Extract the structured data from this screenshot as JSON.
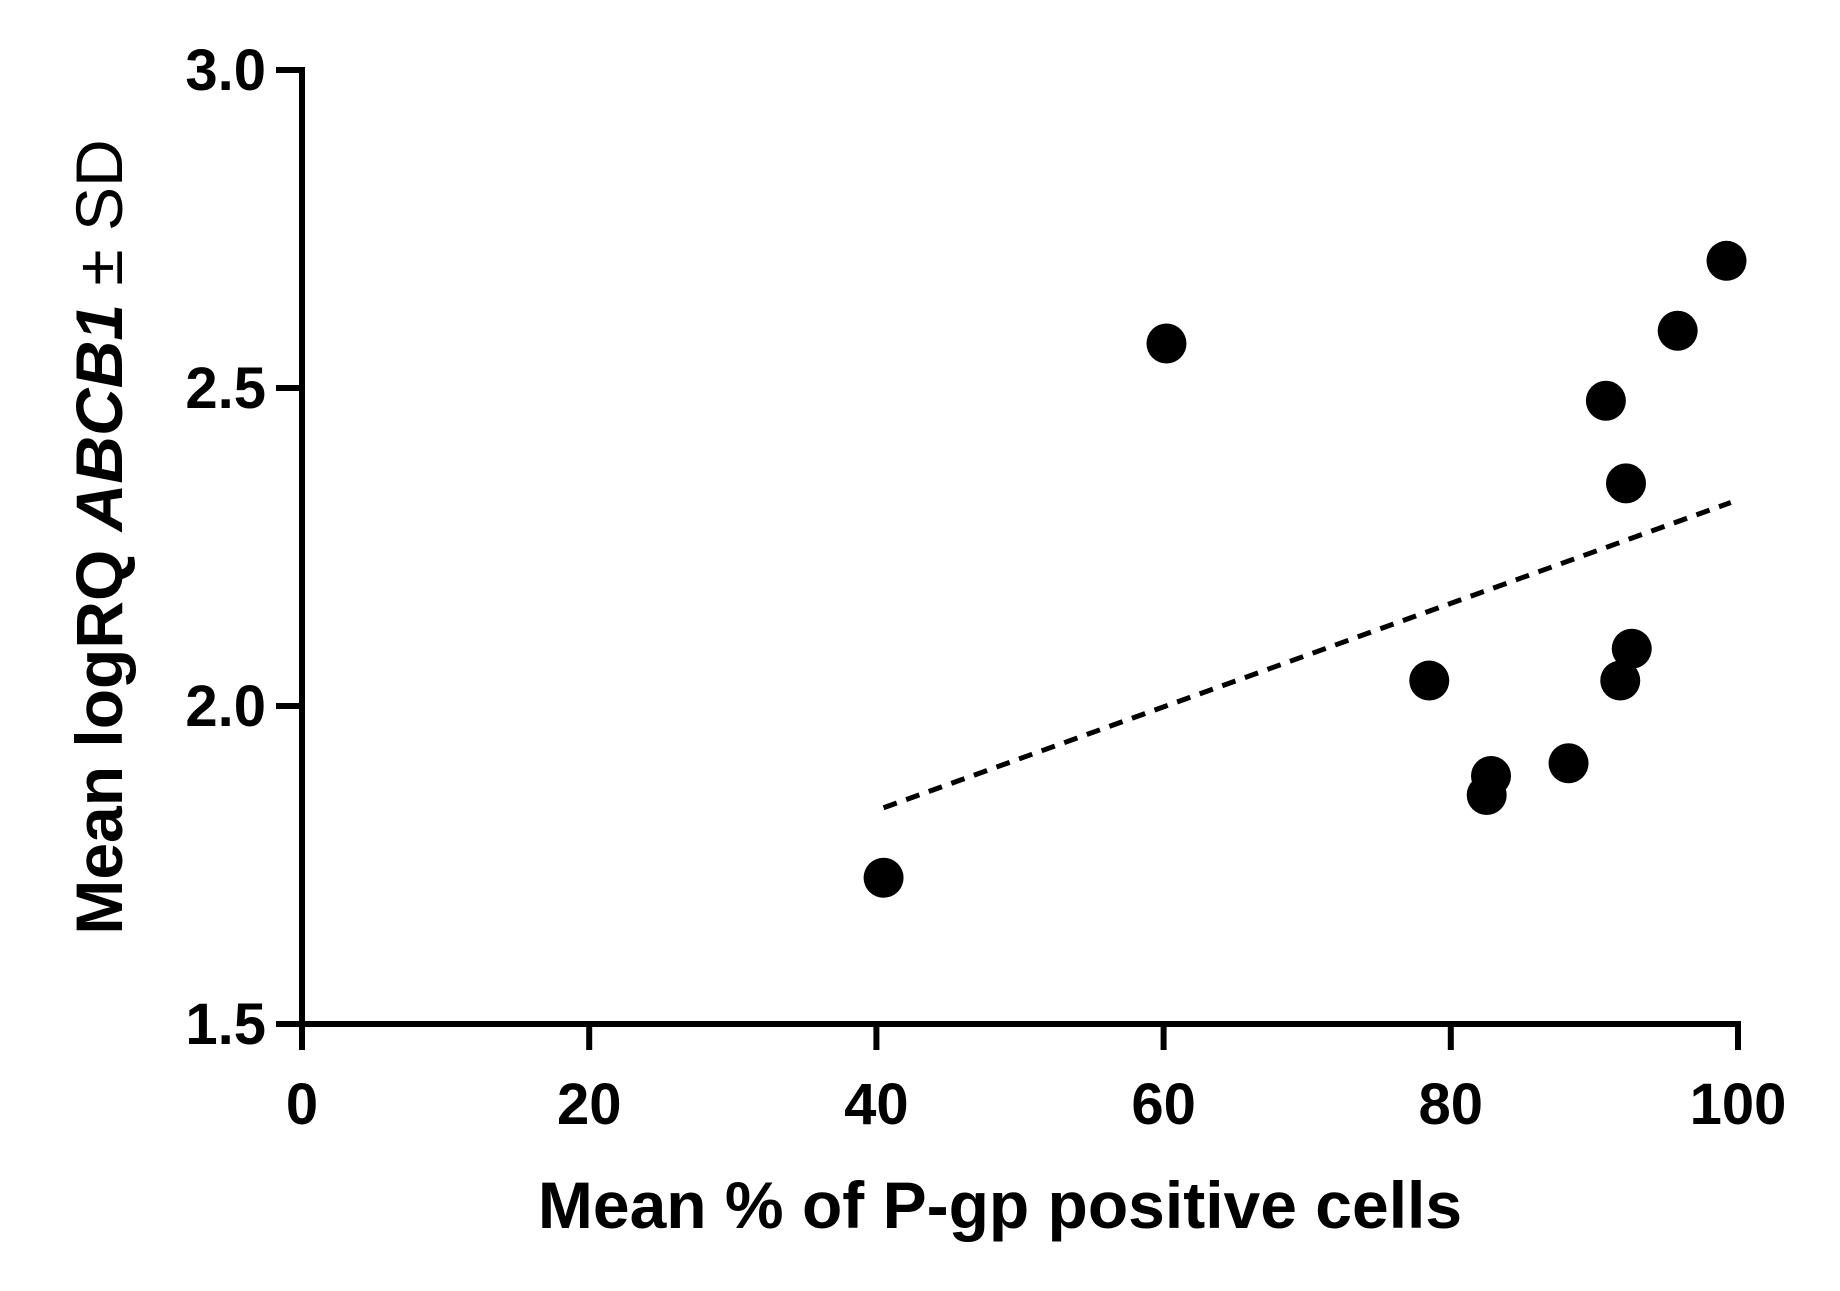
{
  "chart_data": {
    "type": "scatter",
    "title": "",
    "xlabel": "Mean % of P-gp positive cells",
    "ylabel": {
      "prefix": "Mean logRQ ",
      "gene": "ABCB1",
      "suffix": " ± SD"
    },
    "xlim": [
      0,
      100
    ],
    "ylim": [
      1.5,
      3.0
    ],
    "x_ticks": [
      0,
      20,
      40,
      60,
      80,
      100
    ],
    "x_tick_labels": [
      "0",
      "20",
      "40",
      "60",
      "80",
      "100"
    ],
    "y_ticks": [
      1.5,
      2.0,
      2.5,
      3.0
    ],
    "y_tick_labels": [
      "1.5",
      "2.0",
      "2.5",
      "3.0"
    ],
    "grid": false,
    "points": [
      {
        "x": 40.5,
        "y": 1.73
      },
      {
        "x": 60.2,
        "y": 2.57
      },
      {
        "x": 78.5,
        "y": 2.04
      },
      {
        "x": 82.5,
        "y": 1.86
      },
      {
        "x": 82.8,
        "y": 1.89
      },
      {
        "x": 88.2,
        "y": 1.91
      },
      {
        "x": 90.8,
        "y": 2.48
      },
      {
        "x": 91.8,
        "y": 2.04
      },
      {
        "x": 92.2,
        "y": 2.35
      },
      {
        "x": 92.6,
        "y": 2.09
      },
      {
        "x": 95.8,
        "y": 2.59
      },
      {
        "x": 99.2,
        "y": 2.7
      }
    ],
    "trendline": {
      "style": "dashed",
      "x_start": 40.5,
      "y_start": 1.84,
      "x_end": 99.5,
      "y_end": 2.32
    }
  }
}
